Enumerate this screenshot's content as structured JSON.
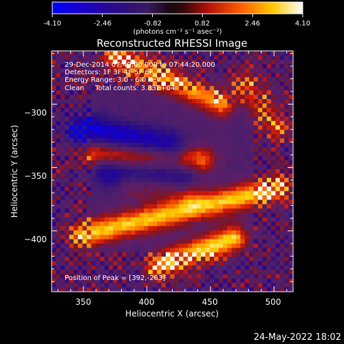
{
  "colorbar": {
    "ticks": [
      "-4.10",
      "-2.46",
      "-0.82",
      "0.82",
      "2.46",
      "4.10"
    ],
    "tick_values": [
      -4.1,
      -2.46,
      -0.82,
      0.82,
      2.46,
      4.1
    ],
    "min": -4.1,
    "max": 4.1,
    "unit_label": "(photons cm⁻² s⁻¹ asec⁻²)"
  },
  "chart_data": {
    "type": "heatmap",
    "title": "Reconstructed RHESSI Image",
    "xlabel": "Heliocentric X (arcsec)",
    "ylabel": "Heliocentric Y (arcsec)",
    "xlim": [
      325,
      515
    ],
    "ylim": [
      -448,
      -258
    ],
    "x_ticks": [
      350,
      400,
      450,
      500
    ],
    "y_ticks": [
      -300,
      -350,
      -400
    ],
    "x_tick_labels": [
      "350",
      "400",
      "450",
      "500"
    ],
    "y_tick_labels": [
      "−300",
      "−350",
      "−400"
    ],
    "grid": false,
    "colormap_stops": [
      "#0000ff",
      "#1a00a0",
      "#3a1a78",
      "#5a1e6e",
      "#8a1410",
      "#d01808",
      "#ff6600",
      "#ffd000",
      "#ffffff"
    ],
    "annotations": [
      "29-Dec-2014 07:40:00.000 to 07:44:20.000",
      "Detectors: 1F 3F 4F 5F 6F",
      "Energy Range: 3.0 - 6.0 keV",
      "Clean     Total counts: 3.83E+04",
      "Position of Peak = [392,-263]"
    ],
    "peak": {
      "x": 392,
      "y": -263
    },
    "features": [
      {
        "kind": "positive_arc",
        "x_start": 375,
        "y_start": -262,
        "x_end": 460,
        "y_end": -300,
        "peak_value": 3.4
      },
      {
        "kind": "negative_band",
        "x_start": 350,
        "y_start": -320,
        "x_end": 420,
        "y_end": -335,
        "peak_value": -3.2
      },
      {
        "kind": "negative_band",
        "x_start": 370,
        "y_start": -355,
        "x_end": 430,
        "y_end": -360,
        "peak_value": -2.6
      },
      {
        "kind": "positive_band",
        "x_start": 360,
        "y_start": -340,
        "x_end": 445,
        "y_end": -345,
        "peak_value": 3.0
      },
      {
        "kind": "positive_band",
        "x_start": 390,
        "y_start": -365,
        "x_end": 435,
        "y_end": -370,
        "peak_value": 2.0
      },
      {
        "kind": "positive_band",
        "x_start": 350,
        "y_start": -405,
        "x_end": 505,
        "y_end": -368,
        "peak_value": 3.9
      },
      {
        "kind": "positive_band",
        "x_start": 410,
        "y_start": -430,
        "x_end": 470,
        "y_end": -408,
        "peak_value": 4.1
      },
      {
        "kind": "positive_band",
        "x_start": 480,
        "y_start": -285,
        "x_end": 505,
        "y_end": -320,
        "peak_value": 2.4
      }
    ]
  },
  "footer": {
    "timestamp": "24-May-2022 18:02"
  }
}
